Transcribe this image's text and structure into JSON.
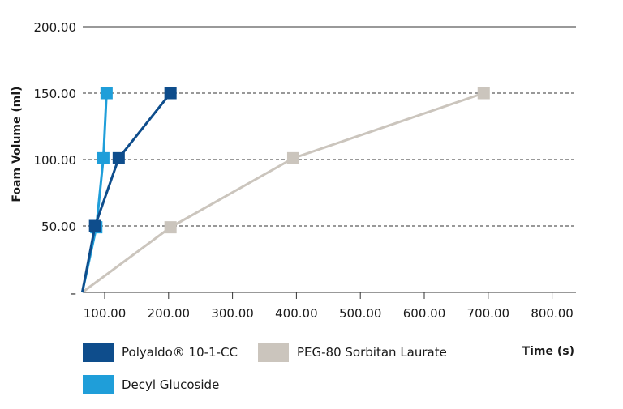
{
  "chart_data": {
    "type": "line",
    "title": "",
    "xlabel": "Time (s)",
    "ylabel": "Foam Volume (ml)",
    "xlim": [
      50,
      800
    ],
    "ylim": [
      0,
      200
    ],
    "x_ticks": [
      100,
      200,
      300,
      400,
      500,
      600,
      700,
      800
    ],
    "x_tick_labels": [
      "100.00",
      "200.00",
      "300.00",
      "400.00",
      "500.00",
      "600.00",
      "700.00",
      "800.00"
    ],
    "y_ticks": [
      0,
      50,
      100,
      150,
      200
    ],
    "y_tick_labels": [
      "–",
      "50.00",
      "100.00",
      "150.00",
      "200.00"
    ],
    "grid": "horizontal dashed",
    "legend_position": "bottom",
    "series": [
      {
        "name": "Polyaldo® 10-1-CC",
        "color": "#0e4d8c",
        "points": [
          [
            65,
            0
          ],
          [
            85,
            50
          ],
          [
            122,
            101
          ],
          [
            203,
            150
          ]
        ]
      },
      {
        "name": "Decyl Glucoside",
        "color": "#1f9ed9",
        "points": [
          [
            65,
            0
          ],
          [
            87,
            49
          ],
          [
            98,
            101
          ],
          [
            103,
            150
          ]
        ]
      },
      {
        "name": "PEG-80 Sorbitan Laurate",
        "color": "#cbc5bd",
        "points": [
          [
            65,
            0
          ],
          [
            203,
            49
          ],
          [
            395,
            101
          ],
          [
            693,
            150
          ]
        ]
      }
    ]
  }
}
